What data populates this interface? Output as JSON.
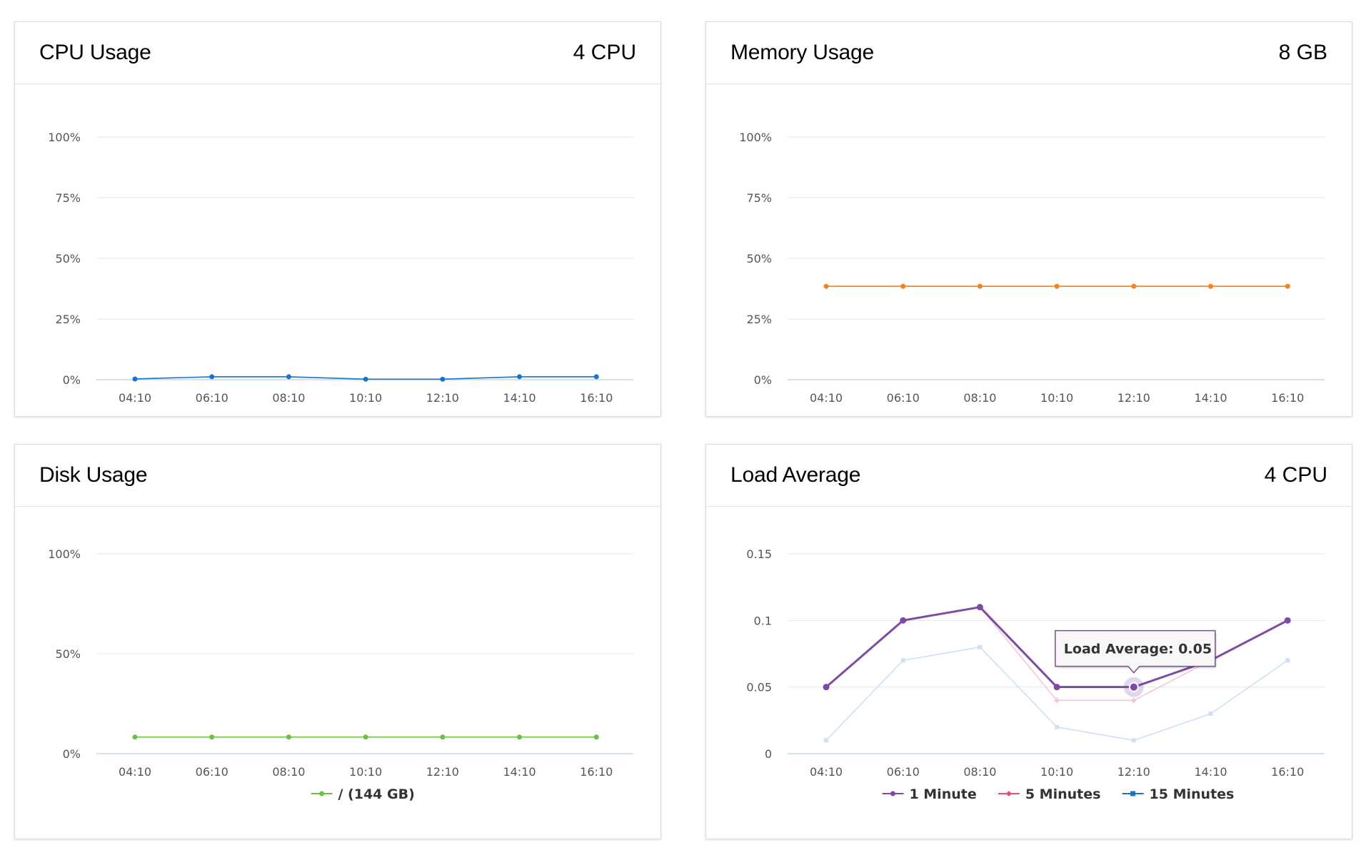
{
  "dashboard": {
    "cpu": {
      "title": "CPU Usage",
      "meta": "4 CPU",
      "chart_data": {
        "type": "line",
        "x": [
          "04:10",
          "06:10",
          "08:10",
          "10:10",
          "12:10",
          "14:10",
          "16:10"
        ],
        "yticks": [
          "100%",
          "75%",
          "50%",
          "25%",
          "0%"
        ],
        "ylim": [
          0,
          100
        ],
        "series": [
          {
            "values": [
              0.3,
              1.2,
              1.2,
              0.2,
              0.2,
              1.2,
              1.2
            ],
            "color": "#1a73c8"
          }
        ],
        "grid": true,
        "legend": null
      }
    },
    "memory": {
      "title": "Memory Usage",
      "meta": "8 GB",
      "chart_data": {
        "type": "line",
        "x": [
          "04:10",
          "06:10",
          "08:10",
          "10:10",
          "12:10",
          "14:10",
          "16:10"
        ],
        "yticks": [
          "100%",
          "75%",
          "50%",
          "25%",
          "0%"
        ],
        "ylim": [
          0,
          100
        ],
        "series": [
          {
            "values": [
              38.5,
              38.5,
              38.5,
              38.5,
              38.5,
              38.5,
              38.5
            ],
            "color": "#f5821f"
          }
        ],
        "grid": true,
        "legend": null
      }
    },
    "disk": {
      "title": "Disk Usage",
      "meta": "",
      "chart_data": {
        "type": "line",
        "x": [
          "04:10",
          "06:10",
          "08:10",
          "10:10",
          "12:10",
          "14:10",
          "16:10"
        ],
        "yticks": [
          "100%",
          "50%",
          "0%"
        ],
        "ylim": [
          0,
          100
        ],
        "series": [
          {
            "name": "/ (144 GB)",
            "values": [
              8.3,
              8.3,
              8.3,
              8.3,
              8.3,
              8.3,
              8.3
            ],
            "color": "#6abf45"
          }
        ],
        "grid": true,
        "legend": "bottom-center"
      }
    },
    "load": {
      "title": "Load Average",
      "meta": "4 CPU",
      "chart_data": {
        "type": "line",
        "x": [
          "04:10",
          "06:10",
          "08:10",
          "10:10",
          "12:10",
          "14:10",
          "16:10"
        ],
        "yticks": [
          "0.15",
          "0.1",
          "0.05",
          "0"
        ],
        "ylim": [
          0,
          0.15
        ],
        "series": [
          {
            "name": "15 Minutes",
            "values": [
              0.01,
              0.07,
              0.08,
              0.02,
              0.01,
              0.03,
              0.07
            ],
            "color": "#cfe0f4",
            "legend_color": "#1a73c8",
            "marker": "square"
          },
          {
            "name": "5 Minutes",
            "values": [
              0.05,
              0.1,
              0.11,
              0.04,
              0.04,
              0.07,
              0.1
            ],
            "color": "#f7c7d0",
            "legend_color": "#e8506e",
            "marker": "diamond"
          },
          {
            "name": "1 Minute",
            "values": [
              0.05,
              0.1,
              0.11,
              0.05,
              0.05,
              0.07,
              0.1
            ],
            "color": "#7d4ba3",
            "legend_color": "#7d4ba3",
            "marker": "circle",
            "bold": true
          }
        ],
        "legend_order": [
          "1 Minute",
          "5 Minutes",
          "15 Minutes"
        ],
        "tooltip": {
          "label": "Load Average: 0.05",
          "series": "1 Minute",
          "index": 4
        },
        "grid": true,
        "legend": "bottom-center"
      }
    }
  }
}
